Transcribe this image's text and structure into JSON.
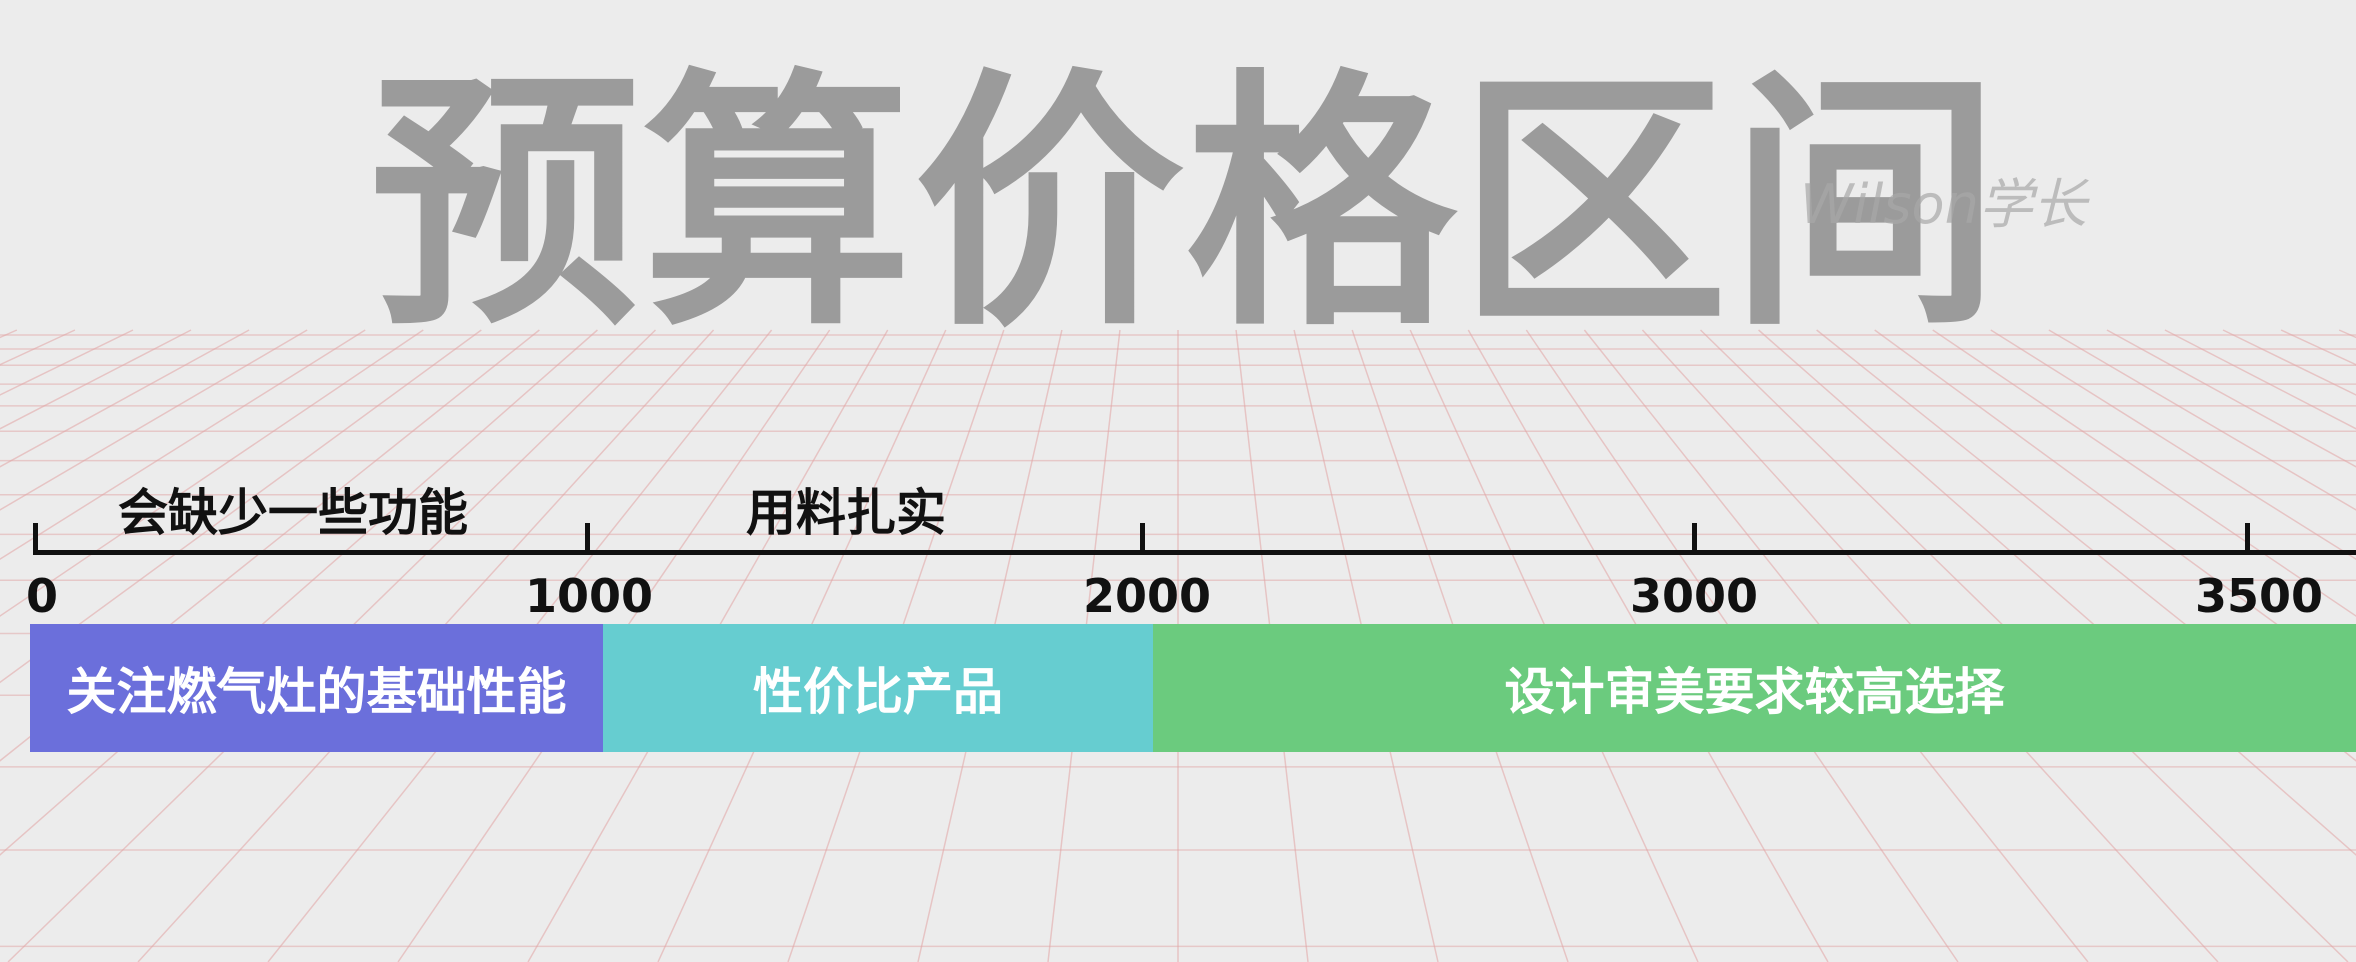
{
  "title": "预算价格区间",
  "watermark": "Wilson学长",
  "axis": {
    "ticks": [
      "0",
      "1000",
      "2000",
      "3000",
      "3500"
    ]
  },
  "notes": {
    "low": "会缺少一些功能",
    "mid": "用料扎实"
  },
  "bands": [
    {
      "label": "关注燃气灶的基础性能",
      "color": "#6b6fdb"
    },
    {
      "label": "性价比产品",
      "color": "#66cdd0"
    },
    {
      "label": "设计审美要求较高选择",
      "color": "#6bcb7e"
    }
  ]
}
